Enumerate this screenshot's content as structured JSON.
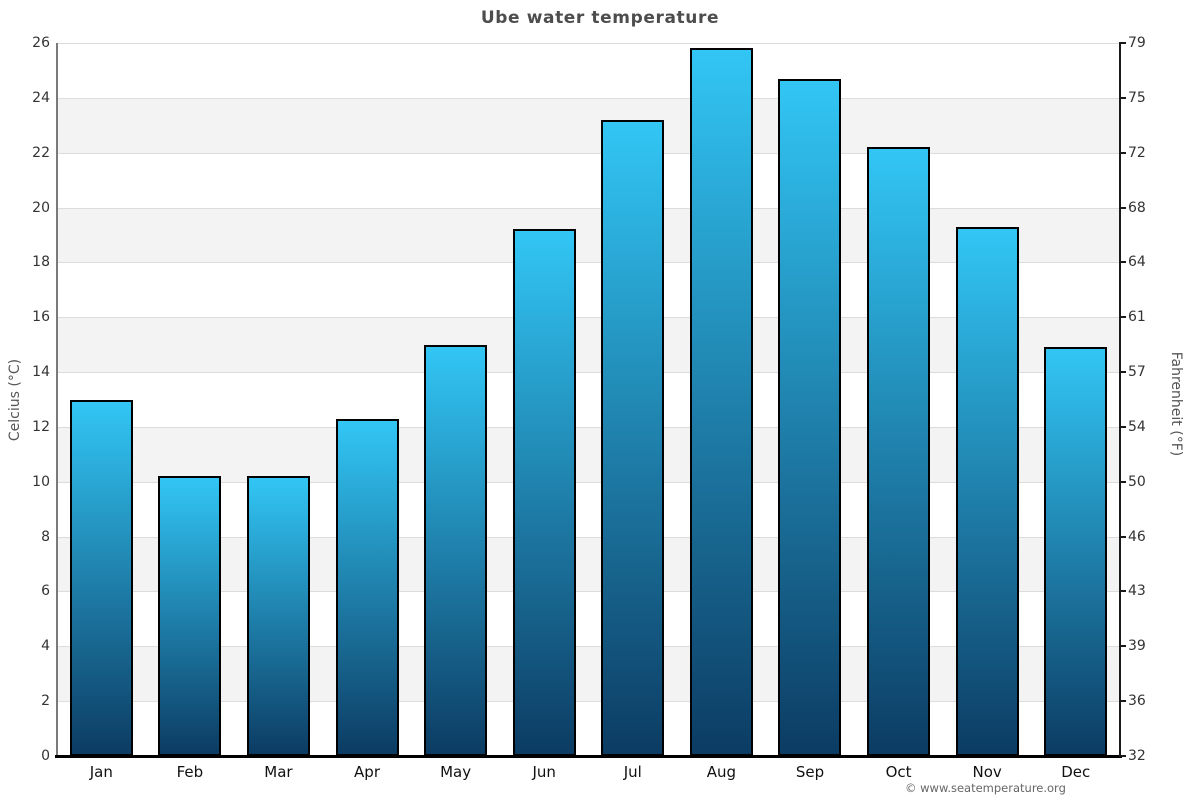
{
  "page": {
    "footer": "© www.seatemperature.org"
  },
  "chart_data": {
    "type": "bar",
    "title": "Ube water temperature",
    "categories": [
      "Jan",
      "Feb",
      "Mar",
      "Apr",
      "May",
      "Jun",
      "Jul",
      "Aug",
      "Sep",
      "Oct",
      "Nov",
      "Dec"
    ],
    "values": [
      13.0,
      10.2,
      10.2,
      12.3,
      15.0,
      19.2,
      23.2,
      25.8,
      24.7,
      22.2,
      19.3,
      14.9
    ],
    "unit": "°C",
    "xlabel": "",
    "ylabel_left": "Celcius (°C)",
    "ylabel_right": "Fahrenheit (°F)",
    "ylim": [
      0,
      26
    ],
    "yticks_celsius": [
      0,
      2,
      4,
      6,
      8,
      10,
      12,
      14,
      16,
      18,
      20,
      22,
      24,
      26
    ],
    "yticks_fahrenheit": [
      32,
      36,
      39,
      43,
      46,
      50,
      54,
      57,
      61,
      64,
      68,
      72,
      75,
      79
    ],
    "legend": "none",
    "grid": "alternating-horizontal-bands",
    "colors": {
      "bar_gradient_top": "#32c6f5",
      "bar_gradient_bottom": "#0c3c63",
      "bar_border": "#010101",
      "band_gray": "#f3f3f3",
      "gridline": "#dcdcdc",
      "title_text": "#4d4d4d",
      "tick_text": "#333333",
      "background": "#ffffff"
    }
  }
}
